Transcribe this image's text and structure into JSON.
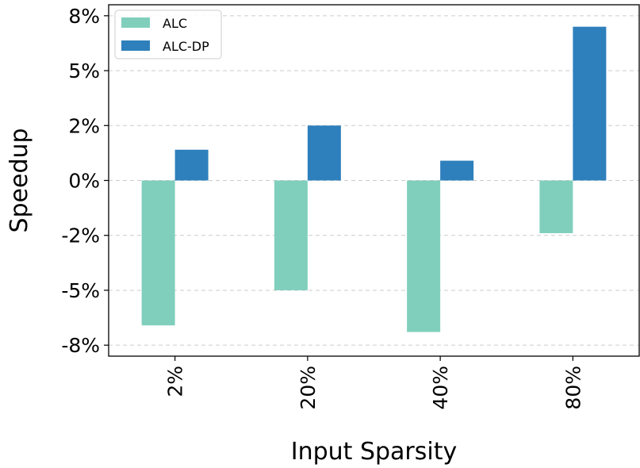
{
  "chart_data": {
    "type": "bar",
    "title": "",
    "xlabel": "Input Sparsity",
    "ylabel": "Speedup",
    "categories": [
      "2%",
      "20%",
      "40%",
      "80%"
    ],
    "series": [
      {
        "name": "ALC",
        "values": [
          -6.6,
          -5.0,
          -6.9,
          -2.4
        ],
        "color": "#80cfbd"
      },
      {
        "name": "ALC-DP",
        "values": [
          1.4,
          2.5,
          0.9,
          7.0
        ],
        "color": "#2e80bc"
      }
    ],
    "yticks": [
      {
        "value": 7.5,
        "label": "8%"
      },
      {
        "value": 5,
        "label": "5%"
      },
      {
        "value": 2.5,
        "label": "2%"
      },
      {
        "value": 0,
        "label": "0%"
      },
      {
        "value": -2.5,
        "label": "-2%"
      },
      {
        "value": -5,
        "label": "-5%"
      },
      {
        "value": -7.5,
        "label": "-8%"
      }
    ],
    "ylim": [
      -8.0,
      8.0
    ],
    "grid": "horizontal-dashed",
    "legend_position": "top-left"
  }
}
